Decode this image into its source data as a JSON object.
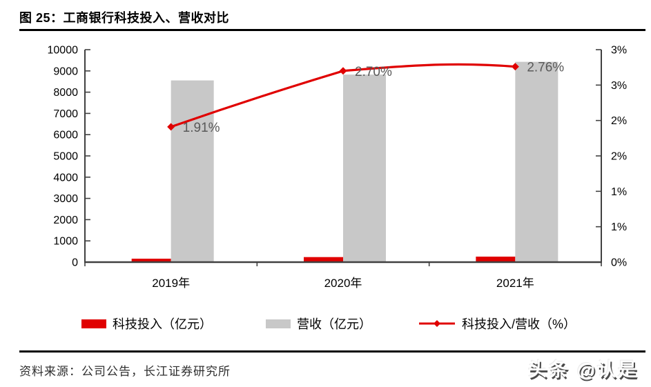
{
  "header": {
    "title": "图 25：工商银行科技投入、营收对比"
  },
  "footer": {
    "source": "资料来源：公司公告，长江证券研究所",
    "watermark": "头条 @认是"
  },
  "colors": {
    "accent_red": "#e00000",
    "bar_gray": "#c8c8c8",
    "axis_line": "#404040",
    "point_label_gray": "#595959"
  },
  "chart_data": {
    "type": "bar",
    "subtype": "combo-bar-line-dual-axis",
    "title": "工商银行科技投入、营收对比",
    "categories": [
      "2019年",
      "2020年",
      "2021年"
    ],
    "series": [
      {
        "name": "科技投入（亿元）",
        "type": "bar",
        "axis": "left",
        "color": "#e00000",
        "values": [
          163,
          238,
          260
        ]
      },
      {
        "name": "营收（亿元）",
        "type": "bar",
        "axis": "left",
        "color": "#c8c8c8",
        "values": [
          8552,
          8827,
          9428
        ]
      },
      {
        "name": "科技投入/营收（%）",
        "type": "line",
        "axis": "right",
        "color": "#e00000",
        "values": [
          1.91,
          2.7,
          2.76
        ],
        "point_labels": [
          "1.91%",
          "2.70%",
          "2.76%"
        ]
      }
    ],
    "left_axis": {
      "min": 0,
      "max": 10000,
      "step": 1000,
      "tick_labels": [
        "10000",
        "9000",
        "8000",
        "7000",
        "6000",
        "5000",
        "4000",
        "3000",
        "2000",
        "1000",
        "0"
      ]
    },
    "right_axis": {
      "min": 0,
      "max": 3,
      "step": 0.5,
      "tick_labels": [
        "3%",
        "3%",
        "2%",
        "2%",
        "1%",
        "1%",
        "0%"
      ]
    },
    "legend_position": "bottom",
    "grid": false
  }
}
